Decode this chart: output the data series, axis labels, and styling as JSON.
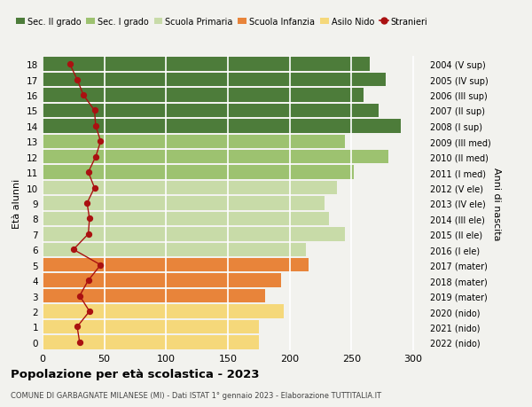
{
  "ages": [
    0,
    1,
    2,
    3,
    4,
    5,
    6,
    7,
    8,
    9,
    10,
    11,
    12,
    13,
    14,
    15,
    16,
    17,
    18
  ],
  "right_labels": [
    "2022 (nido)",
    "2021 (nido)",
    "2020 (nido)",
    "2019 (mater)",
    "2018 (mater)",
    "2017 (mater)",
    "2016 (I ele)",
    "2015 (II ele)",
    "2014 (III ele)",
    "2013 (IV ele)",
    "2012 (V ele)",
    "2011 (I med)",
    "2010 (II med)",
    "2009 (III med)",
    "2008 (I sup)",
    "2007 (II sup)",
    "2006 (III sup)",
    "2005 (IV sup)",
    "2004 (V sup)"
  ],
  "bar_values": [
    175,
    175,
    195,
    180,
    193,
    215,
    213,
    245,
    232,
    228,
    238,
    252,
    280,
    245,
    290,
    272,
    260,
    278,
    265
  ],
  "bar_colors": [
    "#f5d87a",
    "#f5d87a",
    "#f5d87a",
    "#e8843a",
    "#e8843a",
    "#e8843a",
    "#c8dba8",
    "#c8dba8",
    "#c8dba8",
    "#c8dba8",
    "#c8dba8",
    "#9dc270",
    "#9dc270",
    "#9dc270",
    "#4d7c3a",
    "#4d7c3a",
    "#4d7c3a",
    "#4d7c3a",
    "#4d7c3a"
  ],
  "stranieri_values": [
    30,
    28,
    38,
    30,
    37,
    47,
    25,
    37,
    38,
    36,
    42,
    37,
    43,
    47,
    43,
    42,
    33,
    28,
    22
  ],
  "legend_labels": [
    "Sec. II grado",
    "Sec. I grado",
    "Scuola Primaria",
    "Scuola Infanzia",
    "Asilo Nido",
    "Stranieri"
  ],
  "legend_colors": [
    "#4d7c3a",
    "#9dc270",
    "#c8dba8",
    "#e8843a",
    "#f5d87a",
    "#aa1111"
  ],
  "title": "Popolazione per età scolastica - 2023",
  "subtitle": "COMUNE DI GARBAGNATE MILANESE (MI) - Dati ISTAT 1° gennaio 2023 - Elaborazione TUTTITALIA.IT",
  "ylabel_left": "Età alunni",
  "ylabel_right": "Anni di nascita",
  "xlim": [
    0,
    310
  ],
  "xticks": [
    0,
    50,
    100,
    150,
    200,
    250,
    300
  ],
  "background_color": "#f2f2ee",
  "grid_color": "#ffffff"
}
